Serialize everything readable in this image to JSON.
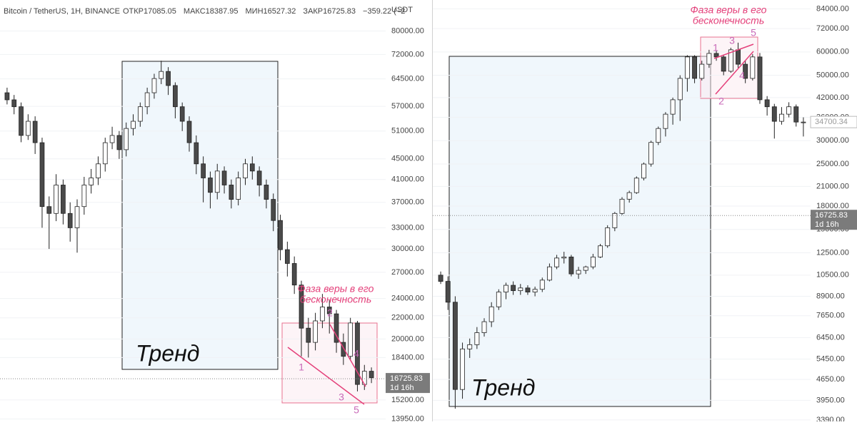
{
  "chart_data": [
    {
      "type": "candlestick",
      "title": "Bitcoin / TetherUS, 1H, BINANCE",
      "header_values": [
        "ОТКР17085.05",
        "МАКС18387.95",
        "МИН16527.32",
        "ЗАКР16725.83",
        "−359.22 (−2"
      ],
      "unit": "USDT",
      "yscale": "log",
      "grid": true,
      "up_color": "#ffffff",
      "down_color": "#4a4a4a",
      "ylim": [
        13800,
        92000
      ],
      "yticks": [
        {
          "value": 80000,
          "label": "80000.00"
        },
        {
          "value": 72000,
          "label": "72000.00"
        },
        {
          "value": 64500,
          "label": "64500.00"
        },
        {
          "value": 57000,
          "label": "57000.00"
        },
        {
          "value": 51000,
          "label": "51000.00"
        },
        {
          "value": 45000,
          "label": "45000.00"
        },
        {
          "value": 41000,
          "label": "41000.00"
        },
        {
          "value": 37000,
          "label": "37000.00"
        },
        {
          "value": 33000,
          "label": "33000.00"
        },
        {
          "value": 30000,
          "label": "30000.00"
        },
        {
          "value": 27000,
          "label": "27000.00"
        },
        {
          "value": 24000,
          "label": "24000.00"
        },
        {
          "value": 22000,
          "label": "22000.00"
        },
        {
          "value": 20000,
          "label": "20000.00"
        },
        {
          "value": 18400,
          "label": "18400.00"
        },
        {
          "value": 15200,
          "label": "15200.00"
        },
        {
          "value": 13950,
          "label": "13950.00"
        }
      ],
      "ohlc": [
        [
          60600,
          62000,
          57500,
          58700
        ],
        [
          58700,
          60000,
          55000,
          56900
        ],
        [
          56900,
          58000,
          48500,
          50000
        ],
        [
          50000,
          55000,
          49000,
          53300
        ],
        [
          53300,
          54500,
          46000,
          48400
        ],
        [
          48400,
          49500,
          33000,
          36300
        ],
        [
          36300,
          38000,
          30000,
          35200
        ],
        [
          35200,
          42000,
          34000,
          40000
        ],
        [
          40000,
          41000,
          33500,
          35200
        ],
        [
          35200,
          37000,
          31000,
          33000
        ],
        [
          33000,
          37500,
          29500,
          36300
        ],
        [
          36300,
          41500,
          35000,
          40000
        ],
        [
          40000,
          43000,
          38500,
          41300
        ],
        [
          41300,
          45500,
          40000,
          44000
        ],
        [
          44000,
          49500,
          42500,
          48400
        ],
        [
          48400,
          52000,
          47000,
          50000
        ],
        [
          50000,
          51000,
          45000,
          46900
        ],
        [
          46900,
          53000,
          45500,
          51600
        ],
        [
          51600,
          55000,
          50000,
          53300
        ],
        [
          53300,
          58000,
          52000,
          56900
        ],
        [
          56900,
          62000,
          55000,
          60600
        ],
        [
          60600,
          66000,
          59000,
          64600
        ],
        [
          64600,
          70000,
          63000,
          66700
        ],
        [
          66700,
          68000,
          60000,
          62600
        ],
        [
          62600,
          63500,
          54000,
          56900
        ],
        [
          56900,
          58000,
          51000,
          53300
        ],
        [
          53300,
          54500,
          46500,
          48400
        ],
        [
          48400,
          50000,
          42000,
          44000
        ],
        [
          44000,
          45500,
          37000,
          41300
        ],
        [
          41300,
          42500,
          36000,
          38700
        ],
        [
          38700,
          44000,
          37500,
          42600
        ],
        [
          42600,
          43500,
          38500,
          40000
        ],
        [
          40000,
          41000,
          36000,
          37500
        ],
        [
          37500,
          42500,
          36500,
          41300
        ],
        [
          41300,
          45000,
          40000,
          44000
        ],
        [
          44000,
          45500,
          41000,
          42600
        ],
        [
          42600,
          43500,
          38000,
          40000
        ],
        [
          40000,
          41000,
          36000,
          37500
        ],
        [
          37500,
          38500,
          32500,
          34100
        ],
        [
          34100,
          35000,
          28500,
          29900
        ],
        [
          29900,
          31000,
          26500,
          28100
        ],
        [
          28100,
          29000,
          24500,
          25500
        ],
        [
          25500,
          26000,
          18500,
          21000
        ],
        [
          21000,
          22000,
          18400,
          19700
        ],
        [
          19700,
          22500,
          19000,
          21700
        ],
        [
          21700,
          24500,
          21000,
          23100
        ],
        [
          23100,
          23800,
          20500,
          22400
        ],
        [
          22400,
          22800,
          18800,
          19700
        ],
        [
          19700,
          20500,
          17800,
          18500
        ],
        [
          18500,
          22000,
          18200,
          21500
        ],
        [
          21500,
          21700,
          15800,
          16300
        ],
        [
          16300,
          17800,
          15900,
          17300
        ],
        [
          17300,
          17600,
          16400,
          16800
        ]
      ],
      "last_price": 16725.83,
      "countdown": "1d 16h",
      "trend_label": "Тренд",
      "phase_label": [
        "Фаза веры в его",
        "бесконечность"
      ],
      "wave_labels": [
        "1",
        "2",
        "3",
        "4",
        "5"
      ]
    },
    {
      "type": "candlestick",
      "yscale": "log",
      "grid": true,
      "up_color": "#ffffff",
      "down_color": "#4a4a4a",
      "ylim": [
        3350,
        90000
      ],
      "yticks": [
        {
          "value": 84000,
          "label": "84000.00"
        },
        {
          "value": 72000,
          "label": "72000.00"
        },
        {
          "value": 60000,
          "label": "60000.00"
        },
        {
          "value": 50000,
          "label": "50000.00"
        },
        {
          "value": 42000,
          "label": "42000.00"
        },
        {
          "value": 36000,
          "label": "36000.00"
        },
        {
          "value": 30000,
          "label": "30000.00"
        },
        {
          "value": 25000,
          "label": "25000.00"
        },
        {
          "value": 21000,
          "label": "21000.00"
        },
        {
          "value": 18000,
          "label": "18000.00"
        },
        {
          "value": 15000,
          "label": "15000.00"
        },
        {
          "value": 12500,
          "label": "12500.00"
        },
        {
          "value": 10500,
          "label": "10500.00"
        },
        {
          "value": 8900,
          "label": "8900.00"
        },
        {
          "value": 7650,
          "label": "7650.00"
        },
        {
          "value": 6450,
          "label": "6450.00"
        },
        {
          "value": 5450,
          "label": "5450.00"
        },
        {
          "value": 4650,
          "label": "4650.00"
        },
        {
          "value": 3950,
          "label": "3950.00"
        },
        {
          "value": 3390,
          "label": "3390.00"
        }
      ],
      "ohlc": [
        [
          10500,
          10800,
          9800,
          10000
        ],
        [
          10000,
          10400,
          8000,
          8500
        ],
        [
          8500,
          8900,
          3700,
          4300
        ],
        [
          4300,
          6200,
          4000,
          5900
        ],
        [
          5900,
          6400,
          5500,
          6100
        ],
        [
          6100,
          7000,
          5900,
          6700
        ],
        [
          6700,
          7500,
          6500,
          7300
        ],
        [
          7300,
          8500,
          7000,
          8200
        ],
        [
          8200,
          9400,
          8000,
          9200
        ],
        [
          9200,
          9900,
          8700,
          9700
        ],
        [
          9700,
          10000,
          9000,
          9300
        ],
        [
          9300,
          9800,
          9000,
          9500
        ],
        [
          9500,
          9700,
          9000,
          9200
        ],
        [
          9200,
          9600,
          8900,
          9400
        ],
        [
          9400,
          10300,
          9200,
          10100
        ],
        [
          10100,
          11500,
          10000,
          11200
        ],
        [
          11200,
          12300,
          11000,
          12000
        ],
        [
          12000,
          12600,
          11500,
          12100
        ],
        [
          12100,
          12300,
          10400,
          10600
        ],
        [
          10600,
          11200,
          10200,
          10900
        ],
        [
          10900,
          11300,
          10600,
          11200
        ],
        [
          11200,
          12400,
          11000,
          12100
        ],
        [
          12100,
          13400,
          12000,
          13200
        ],
        [
          13200,
          15500,
          13000,
          15200
        ],
        [
          15200,
          17200,
          14800,
          17000
        ],
        [
          17000,
          19300,
          16800,
          19000
        ],
        [
          19000,
          20300,
          18500,
          20000
        ],
        [
          20000,
          22700,
          19800,
          22400
        ],
        [
          22400,
          25300,
          22000,
          25000
        ],
        [
          25000,
          30000,
          24500,
          29600
        ],
        [
          29600,
          33500,
          29000,
          33000
        ],
        [
          33000,
          37500,
          31000,
          36900
        ],
        [
          36900,
          42000,
          34000,
          41300
        ],
        [
          41300,
          50000,
          35000,
          48800
        ],
        [
          48800,
          58500,
          44000,
          57700
        ],
        [
          57700,
          58500,
          47000,
          48800
        ],
        [
          48800,
          56000,
          48000,
          54500
        ],
        [
          54500,
          61000,
          53000,
          59300
        ],
        [
          59300,
          60500,
          56000,
          57700
        ],
        [
          57700,
          58800,
          50000,
          51600
        ],
        [
          51600,
          62000,
          51000,
          61000
        ],
        [
          61000,
          64500,
          53000,
          54500
        ],
        [
          54500,
          56000,
          47000,
          48800
        ],
        [
          48800,
          59000,
          48000,
          57700
        ],
        [
          57700,
          59500,
          40000,
          41300
        ],
        [
          41300,
          42500,
          36500,
          39100
        ],
        [
          39100,
          40000,
          30500,
          34900
        ],
        [
          34900,
          39000,
          34000,
          36900
        ],
        [
          36900,
          40500,
          36000,
          39100
        ],
        [
          39100,
          39800,
          33500,
          34700
        ],
        [
          34700,
          36000,
          31000,
          34700
        ]
      ],
      "last_price": 16725.83,
      "countdown": "1d 16h",
      "marker_price": 34700.34,
      "trend_label": "Тренд",
      "phase_label": [
        "Фаза веры в его",
        "бесконечность"
      ],
      "wave_labels": [
        "1",
        "2",
        "3",
        "4",
        "5"
      ]
    }
  ]
}
